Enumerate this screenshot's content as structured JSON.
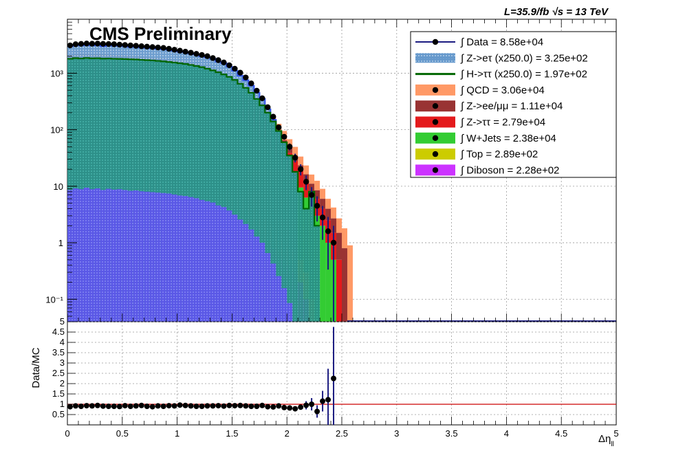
{
  "header": {
    "title": "CMS Preliminary",
    "lumi": "L=35.9/fb  √s = 13 TeV"
  },
  "chart_data": [
    {
      "type": "area",
      "panel": "main",
      "yscale": "log",
      "xlim": [
        0,
        5
      ],
      "ylim": [
        0.04,
        9000
      ],
      "grid": true,
      "legend_position": "top-right",
      "x": [
        0.0,
        0.05,
        0.1,
        0.15,
        0.2,
        0.25,
        0.3,
        0.35,
        0.4,
        0.45,
        0.5,
        0.55,
        0.6,
        0.65,
        0.7,
        0.75,
        0.8,
        0.85,
        0.9,
        0.95,
        1.0,
        1.05,
        1.1,
        1.15,
        1.2,
        1.25,
        1.3,
        1.35,
        1.4,
        1.45,
        1.5,
        1.55,
        1.6,
        1.65,
        1.7,
        1.75,
        1.8,
        1.85,
        1.9,
        1.95,
        2.0,
        2.05,
        2.1,
        2.15,
        2.2,
        2.25,
        2.3,
        2.35,
        2.4,
        2.45,
        2.5,
        2.55
      ],
      "y_ticks": [
        {
          "value": 0.1,
          "label": "10⁻¹"
        },
        {
          "value": 1,
          "label": "1"
        },
        {
          "value": 10,
          "label": "10"
        },
        {
          "value": 100,
          "label": "10²"
        },
        {
          "value": 1000,
          "label": "10³"
        }
      ],
      "series": [
        {
          "name": "QCD = 3.06e+04",
          "color": "#ff9966",
          "kind": "stack",
          "values": [
            700,
            720,
            740,
            730,
            720,
            730,
            740,
            720,
            700,
            720,
            700,
            690,
            680,
            690,
            660,
            650,
            640,
            620,
            600,
            590,
            570,
            560,
            540,
            520,
            500,
            470,
            440,
            400,
            360,
            320,
            280,
            240,
            200,
            160,
            130,
            100,
            75,
            55,
            40,
            30,
            20,
            15,
            10,
            7,
            5,
            4,
            3,
            2,
            1.5,
            1.2,
            1.0,
            0.9
          ]
        },
        {
          "name": "Z->ee/μμ = 1.11e+04",
          "color": "#993333",
          "kind": "stack",
          "values": [
            240,
            245,
            250,
            248,
            246,
            244,
            240,
            238,
            236,
            232,
            228,
            224,
            220,
            216,
            212,
            208,
            204,
            198,
            192,
            186,
            180,
            172,
            164,
            156,
            148,
            140,
            130,
            120,
            110,
            100,
            88,
            76,
            64,
            52,
            42,
            34,
            27,
            21,
            16,
            12,
            9,
            7,
            5,
            4,
            3,
            2.5,
            2,
            1.5,
            1.2,
            1.0,
            0.8,
            0
          ]
        },
        {
          "name": "Z->ττ = 2.79e+04",
          "color": "#e41a1c",
          "kind": "stack",
          "values": [
            620,
            640,
            660,
            650,
            640,
            650,
            640,
            630,
            620,
            610,
            600,
            595,
            590,
            580,
            570,
            560,
            550,
            530,
            510,
            500,
            480,
            460,
            440,
            420,
            400,
            380,
            350,
            320,
            290,
            260,
            230,
            200,
            170,
            140,
            110,
            90,
            70,
            52,
            38,
            28,
            20,
            14,
            9,
            6,
            4,
            3,
            2,
            1.5,
            1.0,
            0.5,
            0,
            0
          ]
        },
        {
          "name": "W+Jets = 2.38e+04",
          "color": "#33cc33",
          "kind": "stack",
          "values": [
            520,
            530,
            540,
            540,
            535,
            530,
            525,
            520,
            515,
            510,
            500,
            495,
            490,
            480,
            470,
            460,
            450,
            440,
            430,
            420,
            400,
            390,
            370,
            350,
            330,
            310,
            290,
            260,
            240,
            210,
            185,
            160,
            135,
            110,
            90,
            70,
            55,
            42,
            32,
            24,
            18,
            13,
            9,
            6,
            4,
            3,
            2,
            1,
            0.5,
            0,
            0,
            0
          ]
        },
        {
          "name": "Top = 2.89e+02",
          "color": "#cccc00",
          "kind": "stack",
          "values": [
            7,
            7,
            7,
            7,
            7,
            7,
            7,
            7,
            7,
            7,
            6.5,
            6.5,
            6.5,
            6.5,
            6,
            6,
            6,
            6,
            6,
            5.5,
            5.5,
            5.5,
            5,
            5,
            5,
            4.5,
            4.5,
            4,
            4,
            3.5,
            3,
            3,
            2.5,
            2,
            2,
            1.5,
            1.2,
            1,
            0.8,
            0.6,
            0.5,
            0.4,
            0.3,
            0.2,
            0.1,
            0,
            0,
            0,
            0,
            0,
            0,
            0
          ]
        },
        {
          "name": "Diboson = 2.28e+02",
          "color": "#cc33ff",
          "kind": "stack",
          "values": [
            5.5,
            5.5,
            5.5,
            5.5,
            5.5,
            5.5,
            5.5,
            5.5,
            5.5,
            5.5,
            5.2,
            5.2,
            5.2,
            5.2,
            5,
            5,
            5,
            5,
            4.8,
            4.8,
            4.6,
            4.5,
            4.4,
            4.2,
            4,
            3.8,
            3.6,
            3.4,
            3.2,
            3,
            2.7,
            2.4,
            2.1,
            1.8,
            1.5,
            1.2,
            1.0,
            0.8,
            0.6,
            0.5,
            0.4,
            0.3,
            0.2,
            0.1,
            0,
            0,
            0,
            0,
            0,
            0,
            0,
            0
          ]
        },
        {
          "name": "Z->eτ (x250.0) = 3.25e+02",
          "color": "#6699cc",
          "kind": "overlay",
          "values": [
            3000,
            3200,
            3100,
            3300,
            3100,
            3200,
            3000,
            3150,
            3050,
            3100,
            3000,
            2900,
            2950,
            2850,
            2800,
            2750,
            2700,
            2650,
            2600,
            2500,
            2400,
            2350,
            2250,
            2150,
            2000,
            1900,
            1800,
            1600,
            1500,
            1300,
            1100,
            900,
            750,
            600,
            450,
            350,
            230,
            150,
            90,
            55,
            30,
            15,
            0,
            0,
            0,
            0,
            0,
            0,
            0,
            0,
            0,
            0
          ]
        },
        {
          "name": "H->ττ (x250.0) = 1.97e+02",
          "color": "#006600",
          "kind": "overlay",
          "values": [
            1800,
            1850,
            1820,
            1860,
            1830,
            1840,
            1810,
            1820,
            1800,
            1790,
            1780,
            1760,
            1750,
            1720,
            1700,
            1680,
            1650,
            1620,
            1580,
            1540,
            1500,
            1460,
            1400,
            1340,
            1280,
            1200,
            1120,
            1040,
            950,
            860,
            760,
            650,
            550,
            450,
            350,
            270,
            200,
            140,
            95,
            60,
            35,
            18,
            8,
            4,
            8,
            2,
            0,
            0,
            0,
            0,
            0,
            0
          ]
        },
        {
          "name": "Data = 8.58e+04",
          "color": "#000000",
          "kind": "points",
          "values": [
            3100,
            3250,
            3300,
            3350,
            3320,
            3340,
            3300,
            3280,
            3250,
            3200,
            3150,
            3100,
            3050,
            3000,
            2950,
            2900,
            2850,
            2800,
            2700,
            2600,
            2500,
            2400,
            2300,
            2200,
            2100,
            2000,
            1850,
            1700,
            1550,
            1380,
            1200,
            1020,
            840,
            660,
            490,
            360,
            250,
            170,
            110,
            75,
            50,
            32,
            20,
            12,
            7,
            4.5,
            2.8,
            1.6,
            1.0,
            0,
            0,
            0
          ]
        }
      ]
    },
    {
      "type": "scatter",
      "panel": "ratio",
      "ylabel": "Data/MC",
      "xlabel": "Δηll",
      "xlim": [
        0,
        5
      ],
      "ylim": [
        0,
        5
      ],
      "reference_line": 1,
      "x_ticks": [
        "0",
        "0.5",
        "1",
        "1.5",
        "2",
        "2.5",
        "3",
        "3.5",
        "4",
        "4.5",
        "5"
      ],
      "y_ticks": [
        "0.5",
        "1",
        "1.5",
        "2",
        "2.5",
        "3",
        "3.5",
        "4",
        "4.5",
        "5"
      ],
      "x": [
        0.025,
        0.075,
        0.125,
        0.175,
        0.225,
        0.275,
        0.325,
        0.375,
        0.425,
        0.475,
        0.525,
        0.575,
        0.625,
        0.675,
        0.725,
        0.775,
        0.825,
        0.875,
        0.925,
        0.975,
        1.025,
        1.075,
        1.125,
        1.175,
        1.225,
        1.275,
        1.325,
        1.375,
        1.425,
        1.475,
        1.525,
        1.575,
        1.625,
        1.675,
        1.725,
        1.775,
        1.825,
        1.875,
        1.925,
        1.975,
        2.025,
        2.075,
        2.125,
        2.175,
        2.225,
        2.275,
        2.325,
        2.375,
        2.425
      ],
      "values": [
        0.88,
        0.92,
        0.9,
        0.93,
        0.92,
        0.94,
        0.91,
        0.9,
        0.9,
        0.89,
        0.93,
        0.9,
        0.92,
        0.94,
        0.9,
        0.88,
        0.92,
        0.9,
        0.93,
        0.92,
        0.96,
        0.94,
        0.92,
        0.9,
        0.9,
        0.92,
        0.92,
        0.93,
        0.91,
        0.94,
        0.93,
        0.94,
        0.92,
        0.9,
        0.9,
        0.94,
        0.88,
        0.87,
        0.92,
        0.84,
        0.82,
        0.78,
        0.86,
        0.95,
        1.0,
        0.65,
        1.15,
        1.22,
        2.25
      ],
      "errors": [
        0.05,
        0.05,
        0.05,
        0.05,
        0.05,
        0.05,
        0.05,
        0.05,
        0.05,
        0.05,
        0.05,
        0.05,
        0.05,
        0.05,
        0.05,
        0.05,
        0.05,
        0.05,
        0.05,
        0.05,
        0.05,
        0.05,
        0.05,
        0.05,
        0.05,
        0.05,
        0.05,
        0.05,
        0.05,
        0.05,
        0.05,
        0.05,
        0.05,
        0.05,
        0.05,
        0.05,
        0.05,
        0.06,
        0.06,
        0.07,
        0.08,
        0.1,
        0.12,
        0.2,
        0.3,
        0.3,
        0.5,
        1.5,
        2.5
      ],
      "series": [
        {
          "name": "Data/MC",
          "color": "#000000"
        }
      ]
    }
  ]
}
